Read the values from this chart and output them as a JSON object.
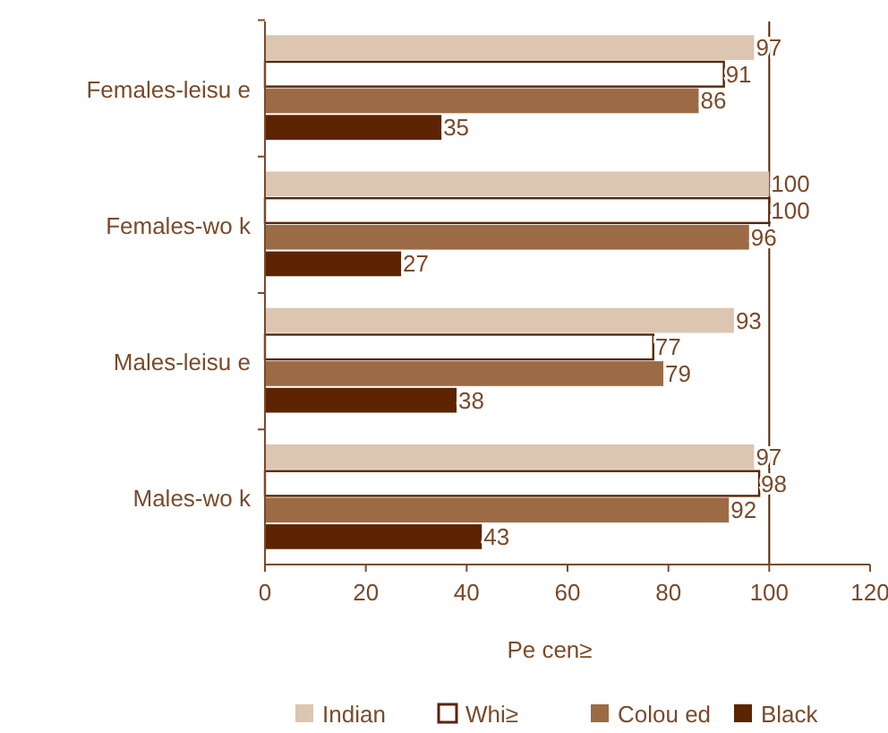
{
  "chart_data": {
    "type": "bar",
    "orientation": "horizontal",
    "xlabel": "Pe cen≥",
    "categories": [
      "Females-leisu e",
      "Females-wo k",
      "Males-leisu e",
      "Males-wo k"
    ],
    "series": [
      {
        "name": "Indian",
        "color": "#dcc5b1",
        "values": [
          97,
          100,
          93,
          97
        ]
      },
      {
        "name": "Whi≥",
        "color": "#ffffff",
        "values": [
          91,
          100,
          77,
          98
        ]
      },
      {
        "name": "Colou ed",
        "color": "#9c6b45",
        "values": [
          86,
          96,
          79,
          92
        ]
      },
      {
        "name": "Black",
        "color": "#5c2400",
        "values": [
          35,
          27,
          38,
          43
        ]
      }
    ],
    "xlim": [
      0,
      120
    ],
    "xticks": [
      0,
      20,
      40,
      60,
      80,
      100,
      120
    ],
    "ref_lines": [
      {
        "axis": "x",
        "value": 100,
        "color": "#5c2400"
      }
    ],
    "data_labels": true,
    "legend": "bottom",
    "grid": false
  }
}
